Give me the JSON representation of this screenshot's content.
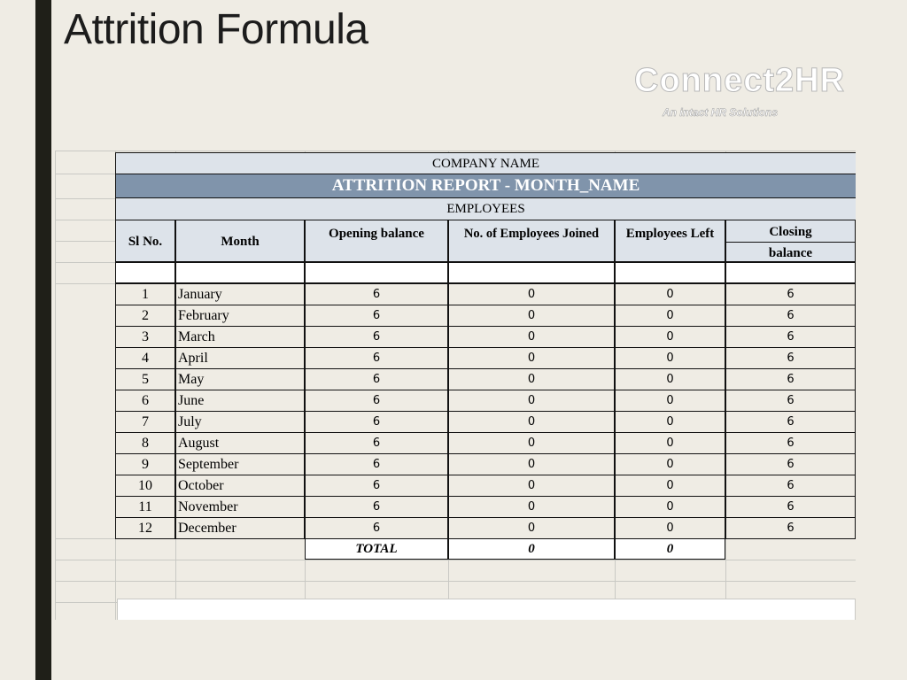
{
  "slide": {
    "title": "Attrition Formula"
  },
  "brand": {
    "name": "Connect2HR",
    "tagline": "An intact HR Solutions"
  },
  "report": {
    "company": "COMPANY NAME",
    "title": "ATTRITION REPORT - MONTH_NAME",
    "section": "EMPLOYEES",
    "headers": {
      "sl": "Sl No.",
      "month": "Month",
      "opening": "Opening balance",
      "joined": "No. of Employees Joined",
      "left": "Employees Left",
      "closing_1": "Closing",
      "closing_2": "balance"
    },
    "rows": [
      {
        "sl": "1",
        "month": "January",
        "opening": "6",
        "joined": "0",
        "left": "0",
        "closing": "6"
      },
      {
        "sl": "2",
        "month": "February",
        "opening": "6",
        "joined": "0",
        "left": "0",
        "closing": "6"
      },
      {
        "sl": "3",
        "month": "March",
        "opening": "6",
        "joined": "0",
        "left": "0",
        "closing": "6"
      },
      {
        "sl": "4",
        "month": "April",
        "opening": "6",
        "joined": "0",
        "left": "0",
        "closing": "6"
      },
      {
        "sl": "5",
        "month": "May",
        "opening": "6",
        "joined": "0",
        "left": "0",
        "closing": "6"
      },
      {
        "sl": "6",
        "month": "June",
        "opening": "6",
        "joined": "0",
        "left": "0",
        "closing": "6"
      },
      {
        "sl": "7",
        "month": "July",
        "opening": "6",
        "joined": "0",
        "left": "0",
        "closing": "6"
      },
      {
        "sl": "8",
        "month": "August",
        "opening": "6",
        "joined": "0",
        "left": "0",
        "closing": "6"
      },
      {
        "sl": "9",
        "month": "September",
        "opening": "6",
        "joined": "0",
        "left": "0",
        "closing": "6"
      },
      {
        "sl": "10",
        "month": "October",
        "opening": "6",
        "joined": "0",
        "left": "0",
        "closing": "6"
      },
      {
        "sl": "11",
        "month": "November",
        "opening": "6",
        "joined": "0",
        "left": "0",
        "closing": "6"
      },
      {
        "sl": "12",
        "month": "December",
        "opening": "6",
        "joined": "0",
        "left": "0",
        "closing": "6"
      }
    ],
    "totals": {
      "label": "TOTAL",
      "joined": "0",
      "left": "0"
    }
  }
}
